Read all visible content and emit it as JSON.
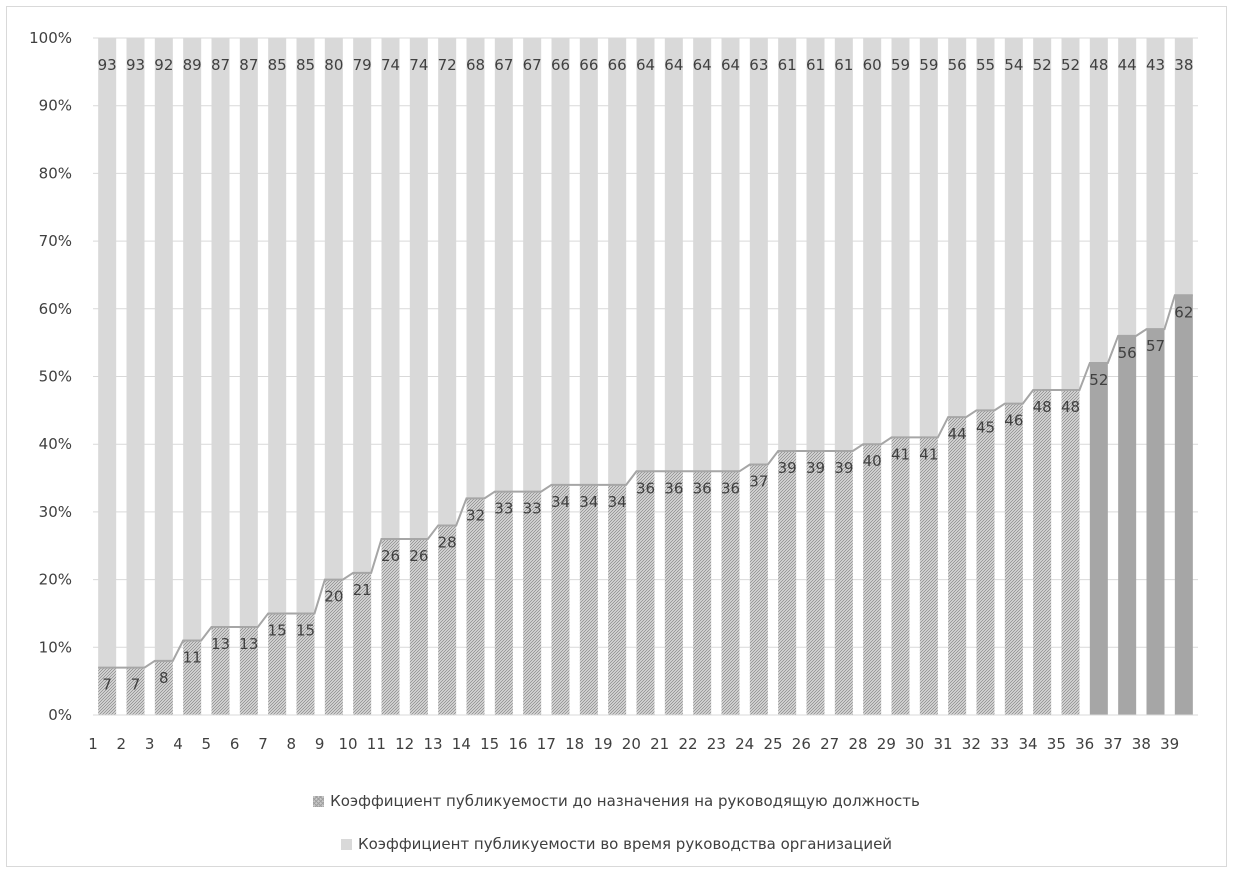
{
  "chart_data": {
    "type": "bar",
    "stacked": "percent",
    "categories": [
      "1",
      "2",
      "3",
      "4",
      "5",
      "6",
      "7",
      "8",
      "9",
      "10",
      "11",
      "12",
      "13",
      "14",
      "15",
      "16",
      "17",
      "18",
      "19",
      "20",
      "21",
      "22",
      "23",
      "24",
      "25",
      "26",
      "27",
      "28",
      "29",
      "30",
      "31",
      "32",
      "33",
      "34",
      "35",
      "36",
      "37",
      "38",
      "39"
    ],
    "series": [
      {
        "name": "Коэффициент публикуемости до назначения на руководящую должность",
        "values": [
          7,
          7,
          8,
          11,
          13,
          13,
          15,
          15,
          20,
          21,
          26,
          26,
          28,
          32,
          33,
          33,
          34,
          34,
          34,
          36,
          36,
          36,
          36,
          37,
          39,
          39,
          39,
          40,
          41,
          41,
          44,
          45,
          46,
          48,
          48,
          52,
          56,
          57,
          62
        ],
        "color": "#c4c4c4",
        "highlight_color": "#a6a6a6",
        "highlight_from_index": 35
      },
      {
        "name": "Коэффициент публикуемости во время руководства организацией",
        "values": [
          93,
          93,
          92,
          89,
          87,
          87,
          85,
          85,
          80,
          79,
          74,
          74,
          72,
          68,
          67,
          67,
          66,
          66,
          66,
          64,
          64,
          64,
          64,
          63,
          61,
          61,
          61,
          60,
          59,
          59,
          56,
          55,
          54,
          52,
          52,
          48,
          44,
          43,
          38
        ],
        "color": "#d9d9d9"
      }
    ],
    "y_ticks": [
      "0%",
      "10%",
      "20%",
      "30%",
      "40%",
      "50%",
      "60%",
      "70%",
      "80%",
      "90%",
      "100%"
    ],
    "ylim": [
      0,
      100
    ],
    "grid": true,
    "legend_placement": "bottom",
    "line_color": "#a6a6a6"
  },
  "legend": {
    "before_label": "Коэффициент публикуемости до назначения на руководящую должность",
    "during_label": "Коэффициент публикуемости во время руководства организацией"
  }
}
